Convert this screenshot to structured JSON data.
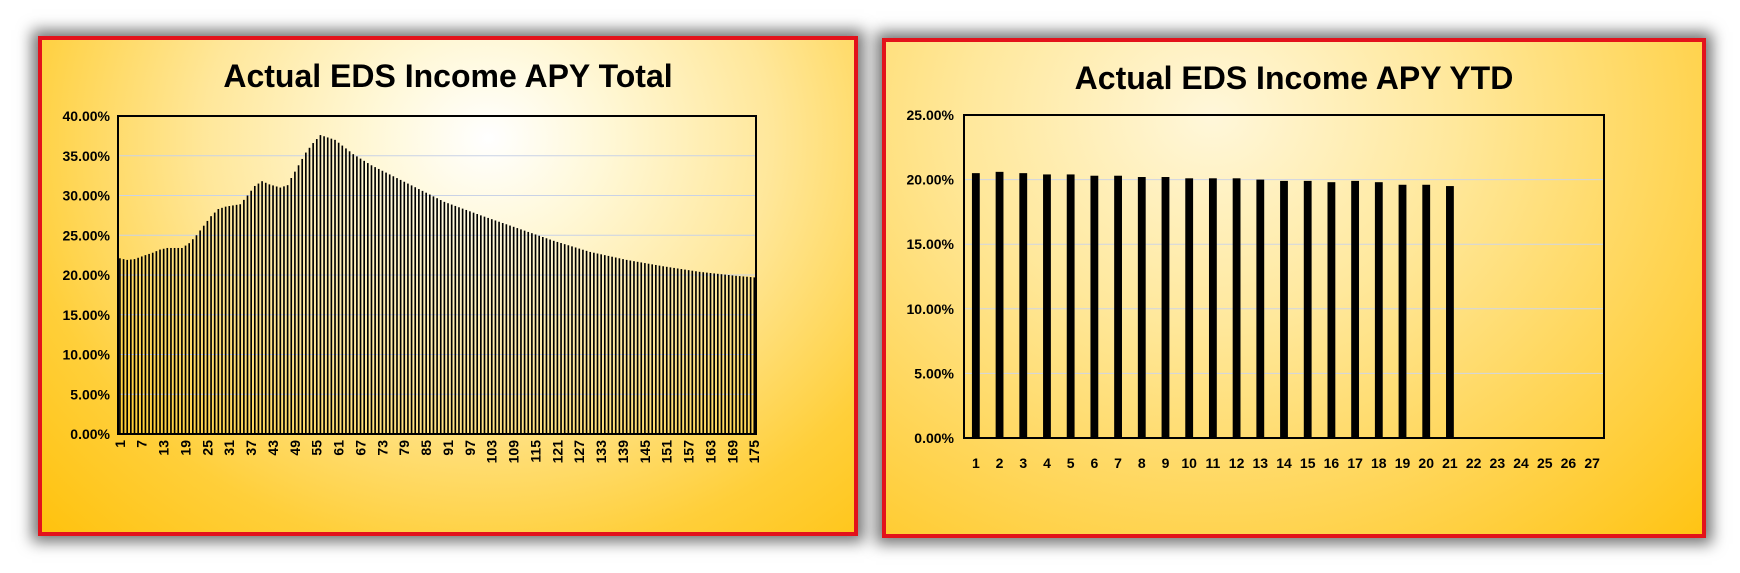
{
  "chart_data": [
    {
      "type": "bar",
      "title": "Actual EDS Income APY Total",
      "xlabel": "",
      "ylabel": "",
      "ylim": [
        0,
        0.4
      ],
      "y_ticks": [
        "0.00%",
        "5.00%",
        "10.00%",
        "15.00%",
        "20.00%",
        "25.00%",
        "30.00%",
        "35.00%",
        "40.00%"
      ],
      "x_tick_labels": [
        "1",
        "7",
        "13",
        "19",
        "25",
        "31",
        "37",
        "43",
        "49",
        "55",
        "61",
        "67",
        "73",
        "79",
        "85",
        "91",
        "97",
        "103",
        "109",
        "115",
        "121",
        "127",
        "133",
        "139",
        "145",
        "151",
        "157",
        "163",
        "169",
        "175"
      ],
      "x_range": [
        1,
        175
      ],
      "grid": true,
      "bar_color": "#000000",
      "keyframes": [
        [
          1,
          0.221
        ],
        [
          3,
          0.219
        ],
        [
          5,
          0.22
        ],
        [
          8,
          0.225
        ],
        [
          10,
          0.228
        ],
        [
          12,
          0.232
        ],
        [
          14,
          0.234
        ],
        [
          18,
          0.234
        ],
        [
          20,
          0.24
        ],
        [
          22,
          0.25
        ],
        [
          24,
          0.262
        ],
        [
          26,
          0.274
        ],
        [
          28,
          0.283
        ],
        [
          30,
          0.286
        ],
        [
          34,
          0.289
        ],
        [
          36,
          0.3
        ],
        [
          38,
          0.312
        ],
        [
          40,
          0.318
        ],
        [
          42,
          0.314
        ],
        [
          45,
          0.31
        ],
        [
          47,
          0.313
        ],
        [
          48,
          0.322
        ],
        [
          50,
          0.338
        ],
        [
          52,
          0.354
        ],
        [
          54,
          0.366
        ],
        [
          56,
          0.376
        ],
        [
          60,
          0.37
        ],
        [
          65,
          0.352
        ],
        [
          70,
          0.338
        ],
        [
          80,
          0.315
        ],
        [
          90,
          0.292
        ],
        [
          100,
          0.275
        ],
        [
          110,
          0.259
        ],
        [
          120,
          0.243
        ],
        [
          130,
          0.229
        ],
        [
          140,
          0.219
        ],
        [
          150,
          0.211
        ],
        [
          160,
          0.204
        ],
        [
          170,
          0.199
        ],
        [
          175,
          0.197
        ]
      ]
    },
    {
      "type": "bar",
      "title": "Actual EDS Income APY YTD",
      "xlabel": "",
      "ylabel": "",
      "ylim": [
        0,
        0.25
      ],
      "y_ticks": [
        "0.00%",
        "5.00%",
        "10.00%",
        "15.00%",
        "20.00%",
        "25.00%"
      ],
      "categories": [
        "1",
        "2",
        "3",
        "4",
        "5",
        "6",
        "7",
        "8",
        "9",
        "10",
        "11",
        "12",
        "13",
        "14",
        "15",
        "16",
        "17",
        "18",
        "19",
        "20",
        "21",
        "22",
        "23",
        "24",
        "25",
        "26",
        "27"
      ],
      "values": [
        0.205,
        0.206,
        0.205,
        0.204,
        0.204,
        0.203,
        0.203,
        0.202,
        0.202,
        0.201,
        0.201,
        0.201,
        0.2,
        0.199,
        0.199,
        0.198,
        0.199,
        0.198,
        0.196,
        0.196,
        0.195,
        null,
        null,
        null,
        null,
        null,
        null
      ],
      "grid": true,
      "bar_color": "#000000"
    }
  ]
}
